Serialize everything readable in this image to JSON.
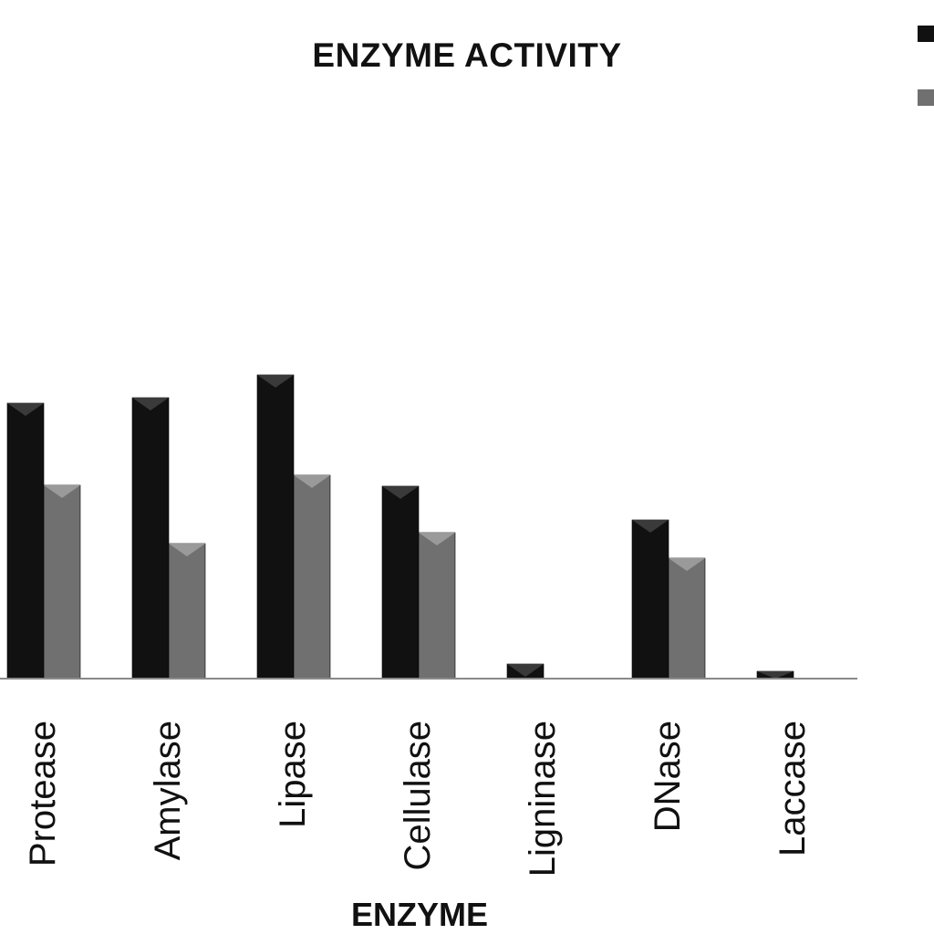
{
  "colors": {
    "series1": "#111111",
    "series2": "#707070",
    "axis": "#8a8a8a"
  },
  "chart_data": {
    "type": "bar",
    "title": "ENZYME ACTIVITY",
    "xlabel": "ENZYME",
    "ylabel": "",
    "categories": [
      "Protease",
      "Amylase",
      "Lipase",
      "Cellulase",
      "Ligninase",
      "DNase",
      "Laccase"
    ],
    "series": [
      {
        "values": [
          30.2,
          30.8,
          33.3,
          21.1,
          1.6,
          17.4,
          0.8
        ]
      },
      {
        "values": [
          21.2,
          14.8,
          22.3,
          16.0,
          0,
          13.2,
          0
        ]
      }
    ],
    "ylim": [
      0,
      60
    ],
    "grid": false,
    "legend": "top-right"
  }
}
